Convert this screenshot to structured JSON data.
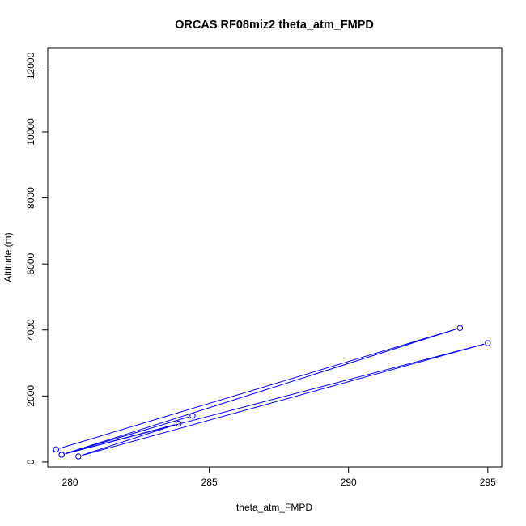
{
  "chart_data": {
    "type": "line",
    "title": "ORCAS RF08miz2 theta_atm_FMPD",
    "xlabel": "theta_atm_FMPD",
    "ylabel": "Altitude (m)",
    "xlim": [
      279.2,
      295.5
    ],
    "ylim": [
      -150,
      12550
    ],
    "xticks": [
      280,
      285,
      290,
      295
    ],
    "yticks": [
      0,
      2000,
      4000,
      6000,
      8000,
      10000,
      12000
    ],
    "series": [
      {
        "color": "#0000ff",
        "points": [
          {
            "x": 279.5,
            "y": 380
          },
          {
            "x": 294.0,
            "y": 4060
          },
          {
            "x": 279.7,
            "y": 220
          },
          {
            "x": 295.0,
            "y": 3600
          },
          {
            "x": 280.3,
            "y": 170
          },
          {
            "x": 283.9,
            "y": 1160
          },
          {
            "x": 279.7,
            "y": 220
          },
          {
            "x": 284.4,
            "y": 1400
          }
        ]
      }
    ]
  }
}
